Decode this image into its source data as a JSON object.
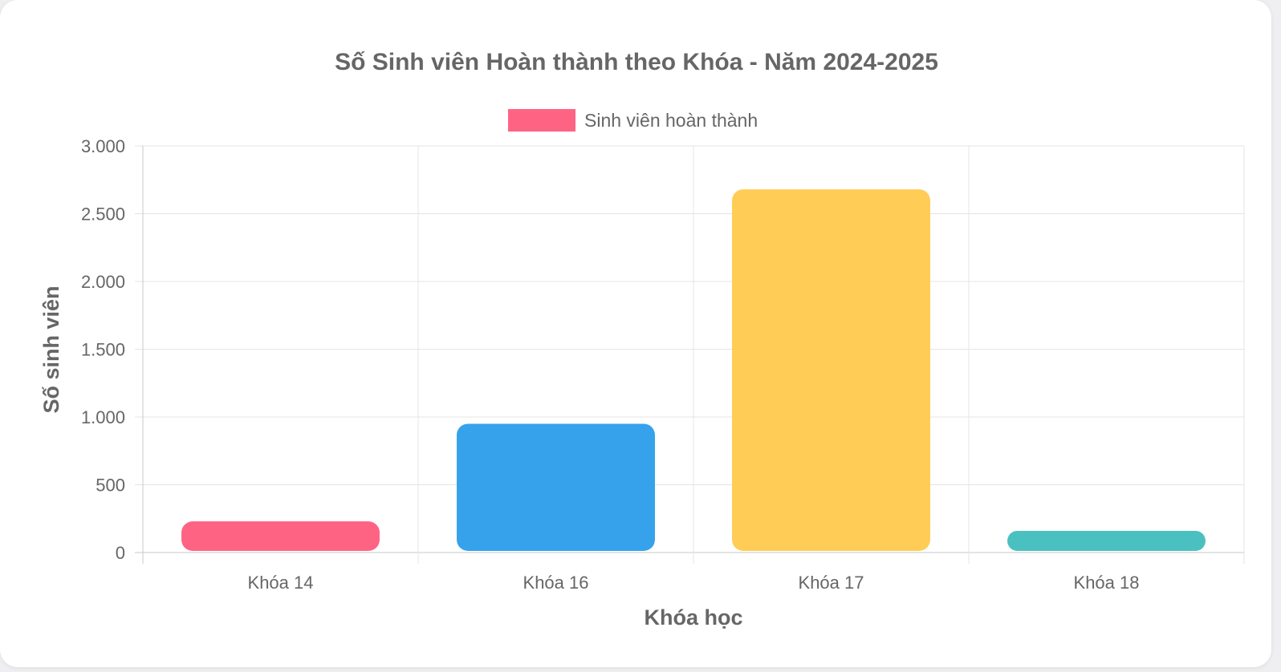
{
  "chart_data": {
    "type": "bar",
    "title": "Số Sinh viên Hoàn thành theo Khóa - Năm 2024-2025",
    "xlabel": "Khóa học",
    "ylabel": "Số sinh viên",
    "categories": [
      "Khóa 14",
      "Khóa 16",
      "Khóa 17",
      "Khóa 18"
    ],
    "series": [
      {
        "name": "Sinh viên hoàn thành",
        "values": [
          230,
          950,
          2680,
          160
        ],
        "colors": [
          "#ff6384",
          "#36a2eb",
          "#ffcd56",
          "#4bc0c0"
        ]
      }
    ],
    "legend_color": "#ff6384",
    "ylim": [
      0,
      3000
    ],
    "yticks": [
      0,
      500,
      1000,
      1500,
      2000,
      2500,
      3000
    ],
    "ytick_labels": [
      "0",
      "500",
      "1.000",
      "1.500",
      "2.000",
      "2.500",
      "3.000"
    ],
    "grid": true,
    "legend_position": "top"
  }
}
